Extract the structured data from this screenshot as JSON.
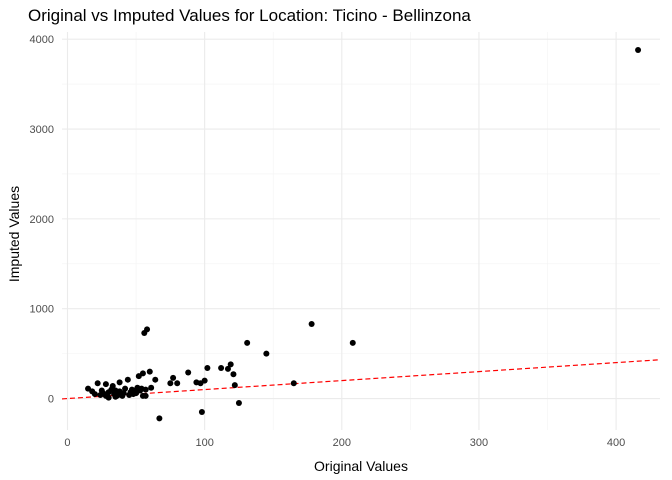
{
  "chart_data": {
    "type": "scatter",
    "title": "Original vs Imputed Values for Location: Ticino - Bellinzona",
    "xlabel": "Original Values",
    "ylabel": "Imputed Values",
    "xlim": [
      -4,
      432
    ],
    "ylim": [
      -350,
      4080
    ],
    "x_ticks": [
      0,
      100,
      200,
      300,
      400
    ],
    "y_ticks": [
      0,
      1000,
      2000,
      3000,
      4000
    ],
    "x_minor_ticks": [
      50,
      150,
      250,
      350
    ],
    "y_minor_ticks": [
      500,
      1500,
      2500,
      3500
    ],
    "grid": true,
    "point_color": "#000000",
    "reference_line": {
      "type": "identity",
      "slope": 1,
      "intercept": 0,
      "color": "#ff0000",
      "style": "dashed"
    },
    "points": [
      [
        15,
        110
      ],
      [
        18,
        80
      ],
      [
        20,
        50
      ],
      [
        22,
        170
      ],
      [
        24,
        40
      ],
      [
        25,
        90
      ],
      [
        26,
        60
      ],
      [
        28,
        30
      ],
      [
        28,
        160
      ],
      [
        30,
        10
      ],
      [
        30,
        70
      ],
      [
        32,
        100
      ],
      [
        33,
        140
      ],
      [
        34,
        50
      ],
      [
        35,
        90
      ],
      [
        35,
        20
      ],
      [
        36,
        30
      ],
      [
        37,
        40
      ],
      [
        38,
        80
      ],
      [
        38,
        180
      ],
      [
        40,
        30
      ],
      [
        41,
        60
      ],
      [
        42,
        110
      ],
      [
        44,
        210
      ],
      [
        45,
        40
      ],
      [
        46,
        70
      ],
      [
        47,
        100
      ],
      [
        48,
        50
      ],
      [
        49,
        90
      ],
      [
        50,
        60
      ],
      [
        50,
        80
      ],
      [
        51,
        120
      ],
      [
        52,
        250
      ],
      [
        53,
        90
      ],
      [
        54,
        110
      ],
      [
        55,
        280
      ],
      [
        55,
        30
      ],
      [
        56,
        730
      ],
      [
        57,
        30
      ],
      [
        57,
        100
      ],
      [
        58,
        770
      ],
      [
        60,
        300
      ],
      [
        61,
        120
      ],
      [
        64,
        210
      ],
      [
        67,
        -220
      ],
      [
        75,
        170
      ],
      [
        77,
        230
      ],
      [
        80,
        170
      ],
      [
        88,
        290
      ],
      [
        94,
        180
      ],
      [
        97,
        170
      ],
      [
        98,
        -150
      ],
      [
        100,
        200
      ],
      [
        102,
        340
      ],
      [
        112,
        340
      ],
      [
        117,
        330
      ],
      [
        119,
        380
      ],
      [
        121,
        270
      ],
      [
        122,
        150
      ],
      [
        125,
        -50
      ],
      [
        131,
        620
      ],
      [
        145,
        500
      ],
      [
        165,
        170
      ],
      [
        178,
        830
      ],
      [
        208,
        620
      ],
      [
        416,
        3880
      ]
    ]
  }
}
